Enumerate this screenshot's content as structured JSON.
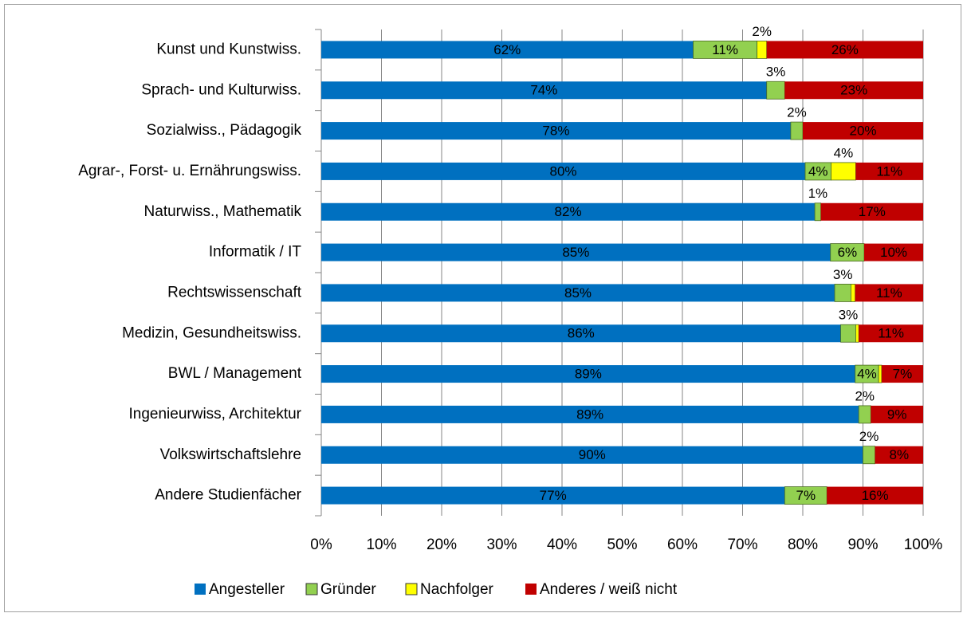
{
  "chart_data": {
    "type": "stacked_barh",
    "categories": [
      "Kunst und Kunstwiss.",
      "Sprach- und Kulturwiss.",
      "Sozialwiss., Pädagogik",
      "Agrar-, Forst- u. Ernährungswiss.",
      "Naturwiss., Mathematik",
      "Informatik / IT",
      "Rechtswissenschaft",
      "Medizin, Gesundheitswiss.",
      "BWL / Management",
      "Ingenieurwiss, Architektur",
      "Volkswirtschaftslehre",
      "Andere Studienfächer"
    ],
    "series": [
      {
        "name": "Angesteller",
        "color": "#0070c0",
        "values": [
          61.8,
          74,
          78,
          80.4,
          82,
          84.6,
          85.3,
          86.3,
          88.7,
          89.3,
          90,
          77
        ],
        "value_labels": [
          "62%",
          "74%",
          "78%",
          "80%",
          "82%",
          "85%",
          "85%",
          "86%",
          "89%",
          "89%",
          "90%",
          "77%"
        ]
      },
      {
        "name": "Gründer",
        "color": "#92d050",
        "values": [
          10.6,
          3,
          2,
          4.3,
          1,
          5.6,
          2.7,
          2.5,
          3.9,
          2,
          2,
          7
        ],
        "value_labels": [
          "11%",
          "3%",
          "2%",
          "4%",
          "1%",
          "6%",
          "3%",
          "3%",
          "4%",
          "2%",
          "2%",
          "7%"
        ]
      },
      {
        "name": "Nachfolger",
        "color": "#ffff00",
        "values": [
          1.6,
          0,
          0,
          4.1,
          0,
          0,
          0.7,
          0.5,
          0.5,
          0,
          0,
          0
        ],
        "value_labels": [
          "2%",
          null,
          null,
          "4%",
          null,
          null,
          null,
          null,
          null,
          null,
          null,
          null
        ]
      },
      {
        "name": "Anderes / weiß nicht",
        "color": "#c00000",
        "values": [
          26,
          23,
          20,
          11.2,
          17,
          9.8,
          11.3,
          10.7,
          6.9,
          8.7,
          8,
          16
        ],
        "value_labels": [
          "26%",
          "23%",
          "20%",
          "11%",
          "17%",
          "10%",
          "11%",
          "11%",
          "7%",
          "9%",
          "8%",
          "16%"
        ]
      }
    ],
    "xlim": [
      0,
      100
    ],
    "xticks": [
      {
        "value": 0,
        "label": "0%"
      },
      {
        "value": 10,
        "label": "10%"
      },
      {
        "value": 20,
        "label": "20%"
      },
      {
        "value": 30,
        "label": "30%"
      },
      {
        "value": 40,
        "label": "40%"
      },
      {
        "value": 50,
        "label": "50%"
      },
      {
        "value": 60,
        "label": "60%"
      },
      {
        "value": 70,
        "label": "70%"
      },
      {
        "value": 80,
        "label": "80%"
      },
      {
        "value": 90,
        "label": "90%"
      },
      {
        "value": 100,
        "label": "100%"
      }
    ],
    "grid": true,
    "legend": "bottom"
  }
}
